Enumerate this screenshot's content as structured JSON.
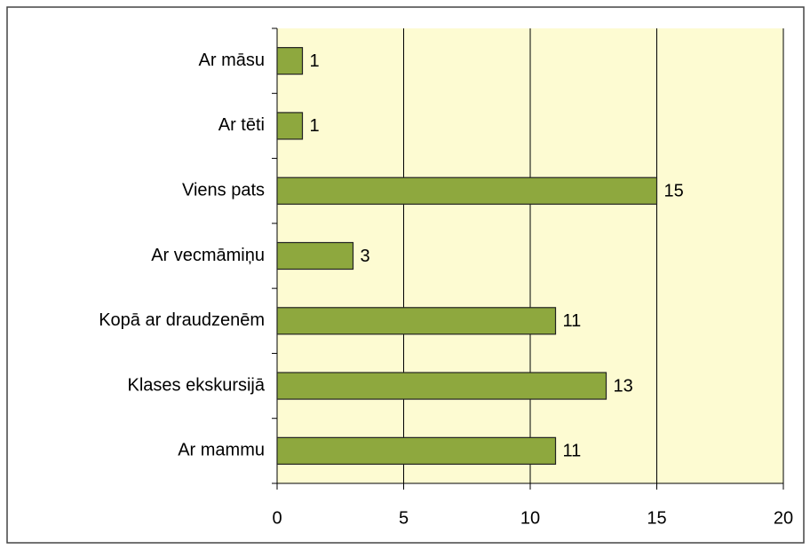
{
  "chart_data": {
    "type": "bar",
    "orientation": "horizontal",
    "categories": [
      "Ar māsu",
      "Ar tēti",
      "Viens pats",
      "Ar vecmāmiņu",
      "Kopā ar draudzenēm",
      "Klases ekskursijā",
      "Ar mammu"
    ],
    "values": [
      1,
      1,
      15,
      3,
      11,
      13,
      11
    ],
    "color": "#8ea83e",
    "plot_background": "#fdfbd2",
    "xlim": [
      0,
      20
    ],
    "xticks": [
      0,
      5,
      10,
      15,
      20
    ],
    "grid": true,
    "data_labels": true
  }
}
